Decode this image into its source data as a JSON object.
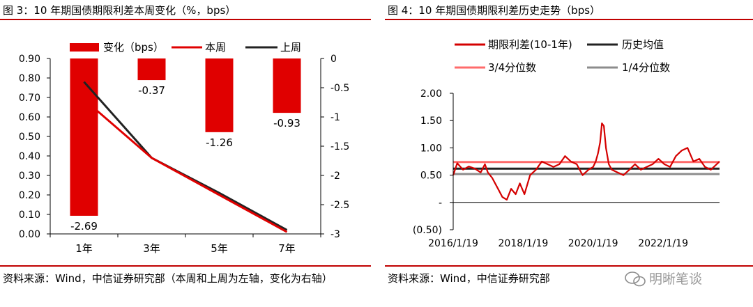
{
  "panel1": {
    "title": "图 3：10 年期国债期限利差本周变化（%，bps）",
    "source": "资料来源：Wind，中信证券研究部（本周和上周为左轴，变化为右轴）"
  },
  "panel2": {
    "title": "图 4：10 年期国债期限利差历史走势（bps）",
    "source": "资料来源：Wind，中信证券研究部"
  },
  "watermark": {
    "text": "明晰笔谈",
    "icon": "wechat-icon"
  },
  "chart_data": [
    {
      "type": "bar+line",
      "categories": [
        "1年",
        "3年",
        "5年",
        "7年"
      ],
      "series": [
        {
          "name": "变化（bps）",
          "type": "bar",
          "axis": "right",
          "values": [
            -2.69,
            -0.37,
            -1.26,
            -0.93
          ],
          "color": "#e00000"
        },
        {
          "name": "本周",
          "type": "line",
          "axis": "left",
          "values": [
            0.69,
            0.39,
            0.2,
            0.01
          ],
          "color": "#e00000"
        },
        {
          "name": "上周",
          "type": "line",
          "axis": "left",
          "values": [
            0.78,
            0.39,
            0.21,
            0.02
          ],
          "color": "#222222"
        }
      ],
      "data_labels": [
        "-2.69",
        "-0.37",
        "-1.26",
        "-0.93"
      ],
      "left_axis": {
        "ylim": [
          0,
          0.9
        ],
        "ticks": [
          "0.00",
          "0.10",
          "0.20",
          "0.30",
          "0.40",
          "0.50",
          "0.60",
          "0.70",
          "0.80",
          "0.90"
        ]
      },
      "right_axis": {
        "ylim": [
          -3,
          0
        ],
        "ticks": [
          "0",
          "-0.5",
          "-1",
          "-1.5",
          "-2",
          "-2.5",
          "-3"
        ]
      },
      "legend_position": "top",
      "grid": false
    },
    {
      "type": "line",
      "x_ticks": [
        "2016/1/19",
        "2018/1/19",
        "2020/1/19",
        "2022/1/19"
      ],
      "y_ticks": [
        "2.00",
        "1.50",
        "1.00",
        "0.50",
        "-",
        "(0.50)"
      ],
      "ylim": [
        -0.5,
        2.0
      ],
      "xlim": [
        "2016-01-19",
        "2023-08-31"
      ],
      "legend_position": "top",
      "grid": false,
      "series": [
        {
          "name": "期限利差(10-1年)",
          "color": "#d40000",
          "dates": [
            "2016-01-19",
            "2016-03-01",
            "2016-05-01",
            "2016-07-01",
            "2016-09-01",
            "2016-11-01",
            "2016-12-15",
            "2017-01-15",
            "2017-03-01",
            "2017-05-01",
            "2017-06-15",
            "2017-08-01",
            "2017-09-15",
            "2017-11-01",
            "2017-12-15",
            "2018-02-01",
            "2018-04-01",
            "2018-06-01",
            "2018-08-01",
            "2018-10-01",
            "2018-12-01",
            "2019-02-01",
            "2019-04-01",
            "2019-06-01",
            "2019-08-01",
            "2019-10-01",
            "2019-12-01",
            "2020-01-19",
            "2020-02-15",
            "2020-03-10",
            "2020-04-01",
            "2020-04-20",
            "2020-05-10",
            "2020-06-01",
            "2020-07-01",
            "2020-08-01",
            "2020-10-01",
            "2020-12-01",
            "2021-02-01",
            "2021-04-01",
            "2021-06-01",
            "2021-08-01",
            "2021-10-01",
            "2021-12-01",
            "2022-02-01",
            "2022-04-01",
            "2022-06-01",
            "2022-08-01",
            "2022-10-01",
            "2022-12-01",
            "2023-02-01",
            "2023-04-01",
            "2023-06-01",
            "2023-08-31"
          ],
          "values": [
            0.5,
            0.72,
            0.6,
            0.66,
            0.62,
            0.55,
            0.7,
            0.55,
            0.45,
            0.25,
            0.1,
            0.05,
            0.25,
            0.15,
            0.35,
            0.15,
            0.5,
            0.6,
            0.75,
            0.7,
            0.65,
            0.7,
            0.85,
            0.75,
            0.7,
            0.5,
            0.6,
            0.65,
            0.75,
            0.9,
            1.1,
            1.45,
            1.4,
            1.0,
            0.7,
            0.6,
            0.55,
            0.5,
            0.6,
            0.7,
            0.6,
            0.65,
            0.7,
            0.8,
            0.7,
            0.65,
            0.85,
            0.95,
            1.0,
            0.75,
            0.8,
            0.65,
            0.6,
            0.75
          ]
        },
        {
          "name": "历史均值",
          "color": "#222222",
          "value": 0.62
        },
        {
          "name": "3/4分位数",
          "color": "#ff6b6b",
          "value": 0.74
        },
        {
          "name": "1/4分位数",
          "color": "#8c8c8c",
          "value": 0.52
        }
      ]
    }
  ]
}
